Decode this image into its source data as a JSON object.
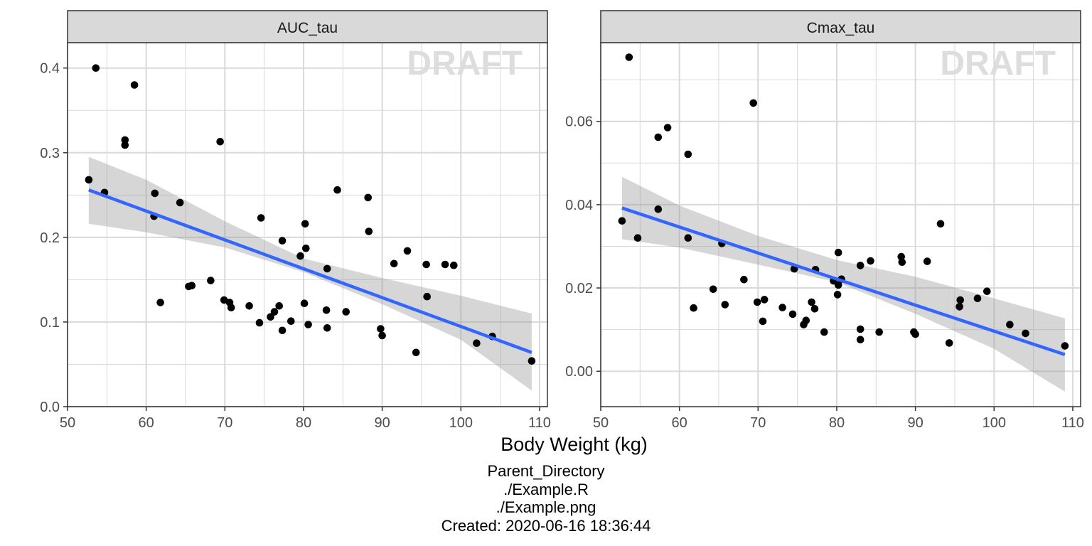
{
  "chart_data": {
    "type": "scatter",
    "xlabel": "Body Weight (kg)",
    "watermark": "DRAFT",
    "xlim": [
      50,
      111
    ],
    "xticks": [
      50,
      60,
      70,
      80,
      90,
      100,
      110
    ],
    "grid": true,
    "colors": {
      "points": "#000000",
      "fit_line": "#3366FF",
      "ribbon": "#999999",
      "strip": "#D9D9D9",
      "grid": "#D9D9D9",
      "watermark": "#DDDDDD"
    },
    "panels": [
      {
        "strip": "AUC_tau",
        "ylim": [
          0,
          0.43
        ],
        "yticks": [
          "0.0",
          "0.1",
          "0.2",
          "0.3",
          "0.4"
        ],
        "ytick_values": [
          0,
          0.1,
          0.2,
          0.3,
          0.4
        ],
        "fit": {
          "x": [
            52.7,
            109
          ],
          "y": [
            0.256,
            0.064
          ]
        },
        "band": {
          "x": [
            52.7,
            60,
            70,
            80,
            90,
            100,
            109
          ],
          "lower": [
            0.216,
            0.206,
            0.188,
            0.159,
            0.121,
            0.079,
            0.019
          ],
          "upper": [
            0.295,
            0.268,
            0.219,
            0.175,
            0.152,
            0.131,
            0.11
          ]
        },
        "points": {
          "x": [
            52.7,
            53.6,
            54.7,
            57.3,
            57.3,
            58.5,
            61.0,
            61.1,
            61.8,
            64.3,
            65.4,
            65.8,
            68.2,
            69.4,
            69.9,
            70.6,
            70.8,
            73.1,
            74.4,
            74.6,
            75.8,
            76.3,
            76.9,
            77.3,
            77.3,
            78.4,
            79.6,
            80.1,
            80.2,
            80.3,
            80.6,
            82.9,
            83.0,
            83.0,
            84.3,
            85.4,
            88.2,
            88.3,
            89.8,
            90.0,
            91.5,
            93.2,
            94.3,
            95.6,
            95.7,
            98.0,
            99.1,
            102.0,
            104.0,
            109.0
          ],
          "y": [
            0.268,
            0.4,
            0.253,
            0.315,
            0.309,
            0.38,
            0.225,
            0.252,
            0.123,
            0.241,
            0.142,
            0.143,
            0.149,
            0.313,
            0.126,
            0.123,
            0.117,
            0.119,
            0.099,
            0.223,
            0.106,
            0.112,
            0.119,
            0.196,
            0.09,
            0.101,
            0.178,
            0.122,
            0.216,
            0.187,
            0.097,
            0.114,
            0.093,
            0.163,
            0.256,
            0.112,
            0.247,
            0.207,
            0.092,
            0.084,
            0.169,
            0.184,
            0.064,
            0.168,
            0.13,
            0.168,
            0.167,
            0.075,
            0.083,
            0.054
          ]
        }
      },
      {
        "strip": "Cmax_tau",
        "ylim": [
          -0.0085,
          0.0789
        ],
        "yticks": [
          "0.00",
          "0.02",
          "0.04",
          "0.06"
        ],
        "ytick_values": [
          0,
          0.02,
          0.04,
          0.06
        ],
        "fit": {
          "x": [
            52.7,
            109
          ],
          "y": [
            0.0392,
            0.004
          ]
        },
        "band": {
          "x": [
            52.7,
            60,
            70,
            80,
            90,
            100,
            109
          ],
          "lower": [
            0.0317,
            0.0297,
            0.0256,
            0.0214,
            0.0138,
            0.0054,
            -0.0049
          ],
          "upper": [
            0.0467,
            0.0398,
            0.0325,
            0.0267,
            0.0227,
            0.0175,
            0.0127
          ]
        },
        "points": {
          "x": [
            52.7,
            53.6,
            54.7,
            57.3,
            57.3,
            58.5,
            61.1,
            61.1,
            61.8,
            64.3,
            65.4,
            65.8,
            68.2,
            69.4,
            69.9,
            70.6,
            70.8,
            73.1,
            74.4,
            74.6,
            75.8,
            76.1,
            76.8,
            77.2,
            77.3,
            78.4,
            79.6,
            80.1,
            80.2,
            80.2,
            80.6,
            83.0,
            83.0,
            83.0,
            84.3,
            85.4,
            88.2,
            88.3,
            89.8,
            90.0,
            91.5,
            93.2,
            94.3,
            95.6,
            95.7,
            97.9,
            99.1,
            102.0,
            104.0,
            109.0
          ],
          "y": [
            0.0361,
            0.0754,
            0.032,
            0.0562,
            0.0389,
            0.0585,
            0.0521,
            0.032,
            0.0152,
            0.0197,
            0.0307,
            0.016,
            0.022,
            0.0644,
            0.0166,
            0.012,
            0.0172,
            0.0153,
            0.0137,
            0.0246,
            0.0112,
            0.0122,
            0.0166,
            0.015,
            0.0244,
            0.0094,
            0.0217,
            0.0184,
            0.0285,
            0.0207,
            0.0221,
            0.0101,
            0.0076,
            0.0254,
            0.0265,
            0.0094,
            0.0275,
            0.0262,
            0.0094,
            0.0089,
            0.0264,
            0.0354,
            0.0068,
            0.0155,
            0.0171,
            0.0175,
            0.0192,
            0.0112,
            0.0091,
            0.0061
          ]
        }
      }
    ]
  },
  "footer": {
    "line1": "Parent_Directory",
    "line2": "./Example.R",
    "line3": "./Example.png",
    "line4": "Created: 2020-06-16 18:36:44"
  }
}
